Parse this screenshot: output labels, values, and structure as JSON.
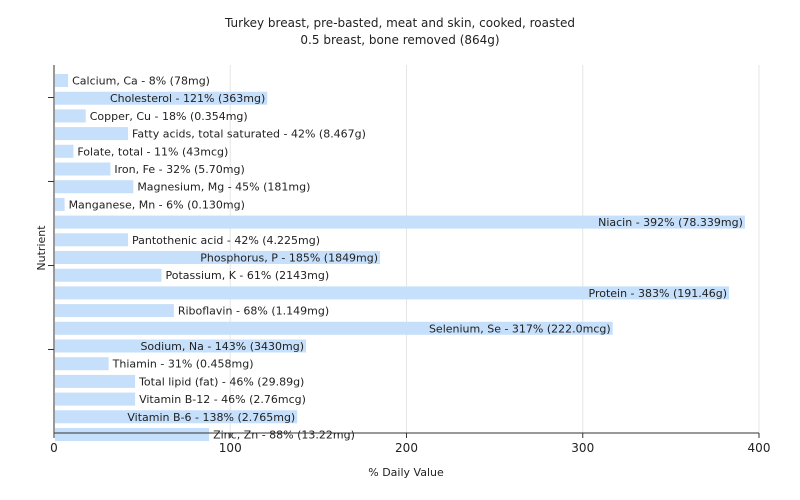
{
  "chart_data": {
    "type": "bar",
    "orientation": "horizontal",
    "title": "Turkey breast, pre-basted, meat and skin, cooked, roasted",
    "subtitle": "0.5 breast, bone removed (864g)",
    "xlabel": "% Daily Value",
    "ylabel": "Nutrient",
    "xlim": [
      0,
      400
    ],
    "xticks": [
      0,
      100,
      200,
      300,
      400
    ],
    "grid": true,
    "bar_color": "#c6dffa",
    "categories": [
      "Calcium, Ca",
      "Cholesterol",
      "Copper, Cu",
      "Fatty acids, total saturated",
      "Folate, total",
      "Iron, Fe",
      "Magnesium, Mg",
      "Manganese, Mn",
      "Niacin",
      "Pantothenic acid",
      "Phosphorus, P",
      "Potassium, K",
      "Protein",
      "Riboflavin",
      "Selenium, Se",
      "Sodium, Na",
      "Thiamin",
      "Total lipid (fat)",
      "Vitamin B-12",
      "Vitamin B-6",
      "Zinc, Zn"
    ],
    "values": [
      8,
      121,
      18,
      42,
      11,
      32,
      45,
      6,
      392,
      42,
      185,
      61,
      383,
      68,
      317,
      143,
      31,
      46,
      46,
      138,
      88
    ],
    "labels": [
      "Calcium, Ca - 8% (78mg)",
      "Cholesterol - 121% (363mg)",
      "Copper, Cu - 18% (0.354mg)",
      "Fatty acids, total saturated - 42% (8.467g)",
      "Folate, total - 11% (43mcg)",
      "Iron, Fe - 32% (5.70mg)",
      "Magnesium, Mg - 45% (181mg)",
      "Manganese, Mn - 6% (0.130mg)",
      "Niacin - 392% (78.339mg)",
      "Pantothenic acid - 42% (4.225mg)",
      "Phosphorus, P - 185% (1849mg)",
      "Potassium, K - 61% (2143mg)",
      "Protein - 383% (191.46g)",
      "Riboflavin - 68% (1.149mg)",
      "Selenium, Se - 317% (222.0mcg)",
      "Sodium, Na - 143% (3430mg)",
      "Thiamin - 31% (0.458mg)",
      "Total lipid (fat) - 46% (29.89g)",
      "Vitamin B-12 - 46% (2.76mcg)",
      "Vitamin B-6 - 138% (2.765mg)",
      "Zinc, Zn - 88% (13.22mg)"
    ]
  }
}
